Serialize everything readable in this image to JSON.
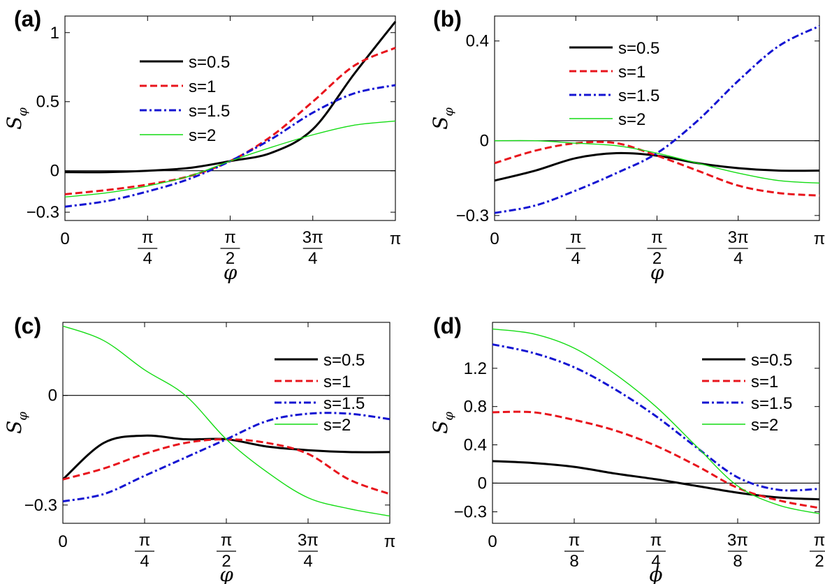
{
  "chart_data": [
    {
      "type": "line",
      "panel": "(a)",
      "xlabel": "φ",
      "ylabel": "Sφ",
      "xlim": [
        0,
        3.14159
      ],
      "ylim": [
        -0.36,
        1.12
      ],
      "xticks": [
        0,
        0.7854,
        1.5708,
        2.3562,
        3.14159
      ],
      "xtick_labels": [
        "0",
        "π|4",
        "π|2",
        "3π|4",
        "π"
      ],
      "yticks": [
        -0.3,
        0,
        0.5,
        1
      ],
      "ytick_labels": [
        "−0.3",
        "0",
        "0.5",
        "1"
      ],
      "legend_position": "top-center",
      "x": [
        0,
        0.393,
        0.785,
        1.178,
        1.571,
        1.963,
        2.356,
        2.749,
        3.142
      ],
      "series": [
        {
          "name": "s=0.5",
          "color": "#000000",
          "style": "solid",
          "values": [
            -0.01,
            -0.01,
            0.0,
            0.02,
            0.07,
            0.13,
            0.3,
            0.7,
            1.08
          ]
        },
        {
          "name": "s=1",
          "color": "#e8141c",
          "style": "dashed",
          "values": [
            -0.17,
            -0.14,
            -0.1,
            -0.04,
            0.07,
            0.25,
            0.5,
            0.76,
            0.89
          ]
        },
        {
          "name": "s=1.5",
          "color": "#1414d2",
          "style": "dashdot",
          "values": [
            -0.26,
            -0.22,
            -0.15,
            -0.06,
            0.07,
            0.23,
            0.42,
            0.56,
            0.62
          ]
        },
        {
          "name": "s=2",
          "color": "#14dc14",
          "style": "thin",
          "values": [
            -0.19,
            -0.16,
            -0.11,
            -0.04,
            0.07,
            0.17,
            0.26,
            0.33,
            0.36
          ]
        }
      ]
    },
    {
      "type": "line",
      "panel": "(b)",
      "xlabel": "φ",
      "ylabel": "Sφ",
      "xlim": [
        0,
        3.14159
      ],
      "ylim": [
        -0.32,
        0.5
      ],
      "xticks": [
        0,
        0.7854,
        1.5708,
        2.3562,
        3.14159
      ],
      "xtick_labels": [
        "0",
        "π|4",
        "π|2",
        "3π|4",
        "π"
      ],
      "yticks": [
        -0.3,
        0,
        0.4
      ],
      "ytick_labels": [
        "−0.3",
        "0",
        "0.4"
      ],
      "legend_position": "top-center",
      "x": [
        0,
        0.393,
        0.785,
        1.178,
        1.571,
        1.963,
        2.356,
        2.749,
        3.142
      ],
      "series": [
        {
          "name": "s=0.5",
          "color": "#000000",
          "style": "solid",
          "values": [
            -0.16,
            -0.12,
            -0.07,
            -0.05,
            -0.06,
            -0.09,
            -0.11,
            -0.12,
            -0.12
          ]
        },
        {
          "name": "s=1",
          "color": "#e8141c",
          "style": "dashed",
          "values": [
            -0.09,
            -0.04,
            -0.01,
            -0.01,
            -0.06,
            -0.12,
            -0.18,
            -0.21,
            -0.22
          ]
        },
        {
          "name": "s=1.5",
          "color": "#1414d2",
          "style": "dashdot",
          "values": [
            -0.29,
            -0.26,
            -0.2,
            -0.13,
            -0.05,
            0.08,
            0.24,
            0.38,
            0.46
          ]
        },
        {
          "name": "s=2",
          "color": "#14dc14",
          "style": "thin",
          "values": [
            -0.0,
            -0.0,
            -0.01,
            -0.02,
            -0.05,
            -0.09,
            -0.13,
            -0.16,
            -0.17
          ]
        }
      ]
    },
    {
      "type": "line",
      "panel": "(c)",
      "xlabel": "φ",
      "ylabel": "Sφ",
      "xlim": [
        0,
        3.14159
      ],
      "ylim": [
        -0.35,
        0.2
      ],
      "xticks": [
        0,
        0.7854,
        1.5708,
        2.3562,
        3.14159
      ],
      "xtick_labels": [
        "0",
        "π|4",
        "π|2",
        "3π|4",
        "π"
      ],
      "yticks": [
        -0.3,
        0
      ],
      "ytick_labels": [
        "−0.3",
        "0"
      ],
      "legend_position": "top-right",
      "x": [
        0,
        0.393,
        0.785,
        1.178,
        1.571,
        1.963,
        2.356,
        2.749,
        3.142
      ],
      "series": [
        {
          "name": "s=0.5",
          "color": "#000000",
          "style": "solid",
          "values": [
            -0.23,
            -0.13,
            -0.11,
            -0.12,
            -0.12,
            -0.14,
            -0.15,
            -0.155,
            -0.155
          ]
        },
        {
          "name": "s=1",
          "color": "#e8141c",
          "style": "dashed",
          "values": [
            -0.23,
            -0.2,
            -0.16,
            -0.13,
            -0.12,
            -0.13,
            -0.16,
            -0.23,
            -0.27
          ]
        },
        {
          "name": "s=1.5",
          "color": "#1414d2",
          "style": "dashdot",
          "values": [
            -0.29,
            -0.27,
            -0.22,
            -0.17,
            -0.12,
            -0.07,
            -0.05,
            -0.05,
            -0.065
          ]
        },
        {
          "name": "s=2",
          "color": "#14dc14",
          "style": "thin",
          "values": [
            0.19,
            0.15,
            0.07,
            0.0,
            -0.12,
            -0.21,
            -0.28,
            -0.31,
            -0.33
          ]
        }
      ]
    },
    {
      "type": "line",
      "panel": "(d)",
      "xlabel": "ϕ",
      "ylabel": "Sφ",
      "xlim": [
        0,
        1.5708
      ],
      "ylim": [
        -0.42,
        1.68
      ],
      "xticks": [
        0,
        0.3927,
        0.7854,
        1.1781,
        1.5708
      ],
      "xtick_labels": [
        "0",
        "π|8",
        "π|4",
        "3π|8",
        "π|2"
      ],
      "yticks": [
        -0.3,
        0,
        0.4,
        0.8,
        1.2
      ],
      "ytick_labels": [
        "−0.3",
        "0",
        "0.4",
        "0.8",
        "1.2"
      ],
      "legend_position": "top-right",
      "x": [
        0,
        0.196,
        0.393,
        0.589,
        0.785,
        0.982,
        1.178,
        1.374,
        1.571
      ],
      "series": [
        {
          "name": "s=0.5",
          "color": "#000000",
          "style": "solid",
          "values": [
            0.23,
            0.21,
            0.17,
            0.1,
            0.04,
            -0.03,
            -0.1,
            -0.15,
            -0.17
          ]
        },
        {
          "name": "s=1",
          "color": "#e8141c",
          "style": "dashed",
          "values": [
            0.74,
            0.74,
            0.66,
            0.55,
            0.39,
            0.18,
            -0.05,
            -0.18,
            -0.26
          ]
        },
        {
          "name": "s=1.5",
          "color": "#1414d2",
          "style": "dashdot",
          "values": [
            1.45,
            1.36,
            1.21,
            0.98,
            0.7,
            0.37,
            0.06,
            -0.07,
            -0.06
          ]
        },
        {
          "name": "s=2",
          "color": "#14dc14",
          "style": "thin",
          "values": [
            1.61,
            1.56,
            1.41,
            1.14,
            0.8,
            0.38,
            -0.03,
            -0.23,
            -0.32
          ]
        }
      ]
    }
  ]
}
